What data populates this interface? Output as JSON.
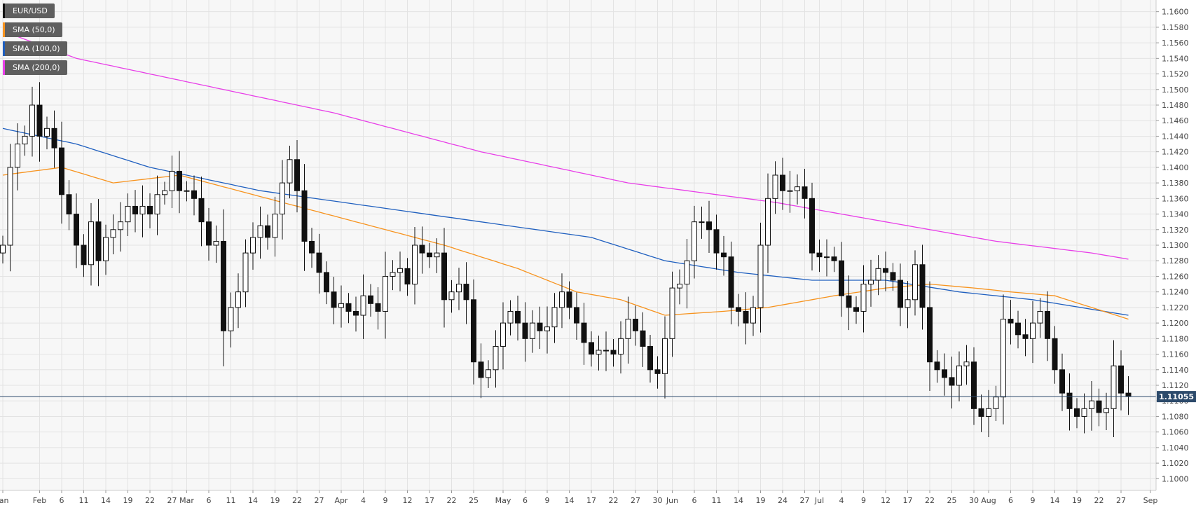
{
  "chart_data": {
    "type": "candlestick",
    "symbol": "EUR/USD",
    "last_price": "1.11055",
    "ylim": [
      1.0985,
      1.1615
    ],
    "y_ticks": [
      "1.1600",
      "1.1580",
      "1.1560",
      "1.1540",
      "1.1520",
      "1.1500",
      "1.1480",
      "1.1460",
      "1.1440",
      "1.1420",
      "1.1400",
      "1.1380",
      "1.1360",
      "1.1340",
      "1.1320",
      "1.1300",
      "1.1280",
      "1.1260",
      "1.1240",
      "1.1220",
      "1.1200",
      "1.1180",
      "1.1160",
      "1.1140",
      "1.1120",
      "1.1100",
      "1.1080",
      "1.1060",
      "1.1040",
      "1.1020",
      "1.1000"
    ],
    "x_ticks": [
      {
        "label": "Jan",
        "index": 0
      },
      {
        "label": "Feb",
        "index": 5
      },
      {
        "label": "6",
        "index": 8
      },
      {
        "label": "11",
        "index": 11
      },
      {
        "label": "14",
        "index": 14
      },
      {
        "label": "19",
        "index": 17
      },
      {
        "label": "22",
        "index": 20
      },
      {
        "label": "27",
        "index": 23
      },
      {
        "label": "Mar",
        "index": 25
      },
      {
        "label": "6",
        "index": 28
      },
      {
        "label": "11",
        "index": 31
      },
      {
        "label": "14",
        "index": 34
      },
      {
        "label": "19",
        "index": 37
      },
      {
        "label": "22",
        "index": 40
      },
      {
        "label": "27",
        "index": 43
      },
      {
        "label": "Apr",
        "index": 46
      },
      {
        "label": "4",
        "index": 49
      },
      {
        "label": "9",
        "index": 52
      },
      {
        "label": "12",
        "index": 55
      },
      {
        "label": "17",
        "index": 58
      },
      {
        "label": "22",
        "index": 61
      },
      {
        "label": "25",
        "index": 64
      },
      {
        "label": "May",
        "index": 68
      },
      {
        "label": "6",
        "index": 71
      },
      {
        "label": "9",
        "index": 74
      },
      {
        "label": "14",
        "index": 77
      },
      {
        "label": "17",
        "index": 80
      },
      {
        "label": "22",
        "index": 83
      },
      {
        "label": "27",
        "index": 86
      },
      {
        "label": "30",
        "index": 89
      },
      {
        "label": "Jun",
        "index": 91
      },
      {
        "label": "6",
        "index": 94
      },
      {
        "label": "11",
        "index": 97
      },
      {
        "label": "14",
        "index": 100
      },
      {
        "label": "19",
        "index": 103
      },
      {
        "label": "24",
        "index": 106
      },
      {
        "label": "27",
        "index": 109
      },
      {
        "label": "Jul",
        "index": 111
      },
      {
        "label": "4",
        "index": 114
      },
      {
        "label": "9",
        "index": 117
      },
      {
        "label": "12",
        "index": 120
      },
      {
        "label": "17",
        "index": 123
      },
      {
        "label": "22",
        "index": 126
      },
      {
        "label": "25",
        "index": 129
      },
      {
        "label": "30",
        "index": 132
      },
      {
        "label": "Aug",
        "index": 134
      },
      {
        "label": "6",
        "index": 137
      },
      {
        "label": "9",
        "index": 140
      },
      {
        "label": "14",
        "index": 143
      },
      {
        "label": "19",
        "index": 146
      },
      {
        "label": "22",
        "index": 149
      },
      {
        "label": "27",
        "index": 152
      },
      {
        "label": "Sep",
        "index": 156
      }
    ],
    "legend": [
      {
        "name": "EUR/USD",
        "color": "#111111"
      },
      {
        "name": "SMA (50,0)",
        "color": "#f7931e"
      },
      {
        "name": "SMA (100,0)",
        "color": "#1f5fbf"
      },
      {
        "name": "SMA (200,0)",
        "color": "#e83ee8"
      }
    ],
    "close_keypoints": [
      [
        0,
        1.13
      ],
      [
        1,
        1.14
      ],
      [
        2,
        1.143
      ],
      [
        3,
        1.144
      ],
      [
        4,
        1.148
      ],
      [
        5,
        1.144
      ],
      [
        6,
        1.145
      ],
      [
        7,
        1.1425
      ],
      [
        8,
        1.1365
      ],
      [
        9,
        1.134
      ],
      [
        10,
        1.13
      ],
      [
        11,
        1.1275
      ],
      [
        12,
        1.133
      ],
      [
        13,
        1.128
      ],
      [
        14,
        1.131
      ],
      [
        15,
        1.132
      ],
      [
        16,
        1.133
      ],
      [
        17,
        1.135
      ],
      [
        18,
        1.134
      ],
      [
        19,
        1.135
      ],
      [
        20,
        1.134
      ],
      [
        21,
        1.1365
      ],
      [
        22,
        1.137
      ],
      [
        23,
        1.1395
      ],
      [
        24,
        1.137
      ],
      [
        25,
        1.137
      ],
      [
        26,
        1.136
      ],
      [
        27,
        1.133
      ],
      [
        28,
        1.13
      ],
      [
        29,
        1.1305
      ],
      [
        30,
        1.119
      ],
      [
        31,
        1.122
      ],
      [
        32,
        1.124
      ],
      [
        33,
        1.129
      ],
      [
        34,
        1.131
      ],
      [
        35,
        1.1325
      ],
      [
        36,
        1.131
      ],
      [
        37,
        1.134
      ],
      [
        38,
        1.138
      ],
      [
        39,
        1.141
      ],
      [
        40,
        1.137
      ],
      [
        41,
        1.1305
      ],
      [
        42,
        1.129
      ],
      [
        43,
        1.1265
      ],
      [
        44,
        1.124
      ],
      [
        45,
        1.122
      ],
      [
        46,
        1.1225
      ],
      [
        47,
        1.1215
      ],
      [
        48,
        1.121
      ],
      [
        49,
        1.1235
      ],
      [
        50,
        1.1225
      ],
      [
        51,
        1.1215
      ],
      [
        52,
        1.126
      ],
      [
        53,
        1.1265
      ],
      [
        54,
        1.127
      ],
      [
        55,
        1.125
      ],
      [
        56,
        1.13
      ],
      [
        57,
        1.129
      ],
      [
        58,
        1.1285
      ],
      [
        59,
        1.129
      ],
      [
        60,
        1.123
      ],
      [
        61,
        1.124
      ],
      [
        62,
        1.125
      ],
      [
        63,
        1.123
      ],
      [
        64,
        1.115
      ],
      [
        65,
        1.113
      ],
      [
        66,
        1.114
      ],
      [
        67,
        1.117
      ],
      [
        68,
        1.12
      ],
      [
        69,
        1.1215
      ],
      [
        70,
        1.12
      ],
      [
        71,
        1.118
      ],
      [
        72,
        1.12
      ],
      [
        73,
        1.119
      ],
      [
        74,
        1.1195
      ],
      [
        75,
        1.122
      ],
      [
        76,
        1.124
      ],
      [
        77,
        1.122
      ],
      [
        78,
        1.12
      ],
      [
        79,
        1.1175
      ],
      [
        80,
        1.116
      ],
      [
        81,
        1.1165
      ],
      [
        82,
        1.1165
      ],
      [
        83,
        1.116
      ],
      [
        84,
        1.118
      ],
      [
        85,
        1.1205
      ],
      [
        86,
        1.119
      ],
      [
        87,
        1.117
      ],
      [
        88,
        1.114
      ],
      [
        89,
        1.1135
      ],
      [
        90,
        1.118
      ],
      [
        91,
        1.1245
      ],
      [
        92,
        1.125
      ],
      [
        93,
        1.128
      ],
      [
        94,
        1.133
      ],
      [
        95,
        1.133
      ],
      [
        96,
        1.132
      ],
      [
        97,
        1.129
      ],
      [
        98,
        1.1285
      ],
      [
        99,
        1.122
      ],
      [
        100,
        1.1215
      ],
      [
        101,
        1.12
      ],
      [
        102,
        1.122
      ],
      [
        103,
        1.13
      ],
      [
        104,
        1.136
      ],
      [
        105,
        1.139
      ],
      [
        106,
        1.137
      ],
      [
        107,
        1.137
      ],
      [
        108,
        1.1375
      ],
      [
        109,
        1.136
      ],
      [
        110,
        1.129
      ],
      [
        111,
        1.1285
      ],
      [
        112,
        1.1285
      ],
      [
        113,
        1.128
      ],
      [
        114,
        1.1235
      ],
      [
        115,
        1.122
      ],
      [
        116,
        1.1215
      ],
      [
        117,
        1.125
      ],
      [
        118,
        1.1255
      ],
      [
        119,
        1.127
      ],
      [
        120,
        1.1265
      ],
      [
        121,
        1.1255
      ],
      [
        122,
        1.122
      ],
      [
        123,
        1.123
      ],
      [
        124,
        1.1275
      ],
      [
        125,
        1.122
      ],
      [
        126,
        1.115
      ],
      [
        127,
        1.114
      ],
      [
        128,
        1.113
      ],
      [
        129,
        1.112
      ],
      [
        130,
        1.1145
      ],
      [
        131,
        1.115
      ],
      [
        132,
        1.109
      ],
      [
        133,
        1.108
      ],
      [
        134,
        1.109
      ],
      [
        135,
        1.1105
      ],
      [
        136,
        1.1205
      ],
      [
        137,
        1.12
      ],
      [
        138,
        1.1185
      ],
      [
        139,
        1.118
      ],
      [
        140,
        1.12
      ],
      [
        141,
        1.1215
      ],
      [
        142,
        1.118
      ],
      [
        143,
        1.114
      ],
      [
        144,
        1.111
      ],
      [
        145,
        1.109
      ],
      [
        146,
        1.108
      ],
      [
        147,
        1.109
      ],
      [
        148,
        1.11
      ],
      [
        149,
        1.1085
      ],
      [
        150,
        1.109
      ],
      [
        151,
        1.1145
      ],
      [
        152,
        1.111
      ],
      [
        153,
        1.1106
      ]
    ],
    "sma50_keypoints": [
      [
        0,
        1.139
      ],
      [
        8,
        1.14
      ],
      [
        15,
        1.138
      ],
      [
        24,
        1.139
      ],
      [
        30,
        1.1375
      ],
      [
        40,
        1.135
      ],
      [
        52,
        1.132
      ],
      [
        60,
        1.13
      ],
      [
        70,
        1.127
      ],
      [
        78,
        1.124
      ],
      [
        84,
        1.123
      ],
      [
        90,
        1.121
      ],
      [
        98,
        1.1215
      ],
      [
        104,
        1.122
      ],
      [
        113,
        1.1235
      ],
      [
        120,
        1.1245
      ],
      [
        126,
        1.125
      ],
      [
        132,
        1.1245
      ],
      [
        137,
        1.124
      ],
      [
        143,
        1.1235
      ],
      [
        148,
        1.122
      ],
      [
        153,
        1.1205
      ]
    ],
    "sma100_keypoints": [
      [
        0,
        1.145
      ],
      [
        10,
        1.143
      ],
      [
        20,
        1.14
      ],
      [
        35,
        1.137
      ],
      [
        50,
        1.135
      ],
      [
        65,
        1.133
      ],
      [
        80,
        1.131
      ],
      [
        90,
        1.128
      ],
      [
        100,
        1.1265
      ],
      [
        110,
        1.1255
      ],
      [
        120,
        1.1255
      ],
      [
        130,
        1.124
      ],
      [
        140,
        1.123
      ],
      [
        153,
        1.121
      ]
    ],
    "sma200_keypoints": [
      [
        0,
        1.1575
      ],
      [
        10,
        1.154
      ],
      [
        25,
        1.151
      ],
      [
        45,
        1.147
      ],
      [
        65,
        1.142
      ],
      [
        85,
        1.138
      ],
      [
        105,
        1.1355
      ],
      [
        120,
        1.133
      ],
      [
        135,
        1.1305
      ],
      [
        148,
        1.129
      ],
      [
        153,
        1.1282
      ]
    ]
  }
}
